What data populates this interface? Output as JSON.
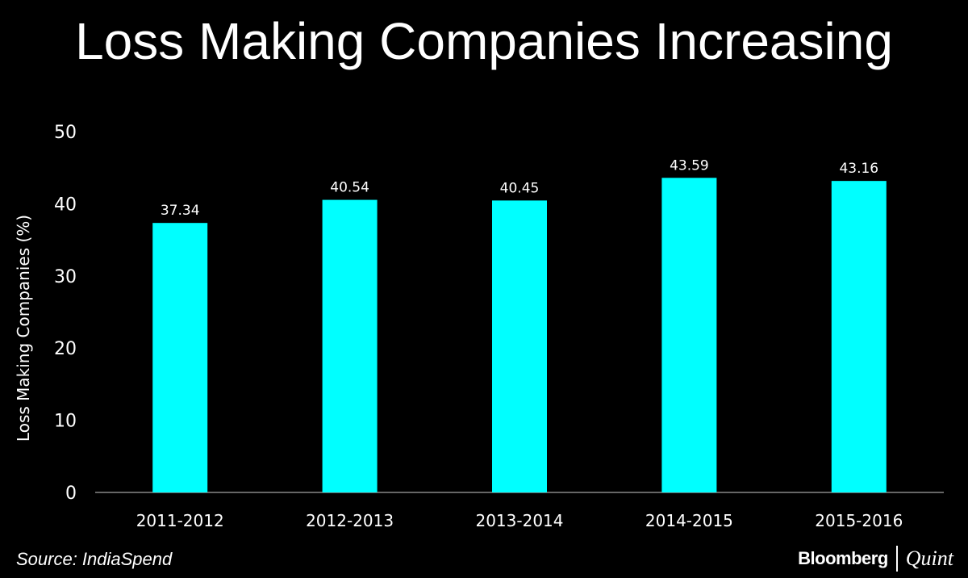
{
  "chart_data": {
    "type": "bar",
    "title": "Loss Making Companies Increasing",
    "xlabel": "",
    "ylabel": "Loss Making Companies (%)",
    "categories": [
      "2011-2012",
      "2012-2013",
      "2013-2014",
      "2014-2015",
      "2015-2016"
    ],
    "values": [
      37.34,
      40.54,
      40.45,
      43.59,
      43.16
    ],
    "data_labels": [
      "37.34",
      "40.54",
      "40.45",
      "43.59",
      "43.16"
    ],
    "ylim": [
      0,
      50
    ],
    "yticks": [
      0,
      10,
      20,
      30,
      40,
      50
    ],
    "grid": false,
    "bar_color": "#00FFFF",
    "background": "#000000"
  },
  "footer": {
    "source": "Source: IndiaSpend",
    "logo_left": "Bloomberg",
    "logo_right": "Quint"
  }
}
